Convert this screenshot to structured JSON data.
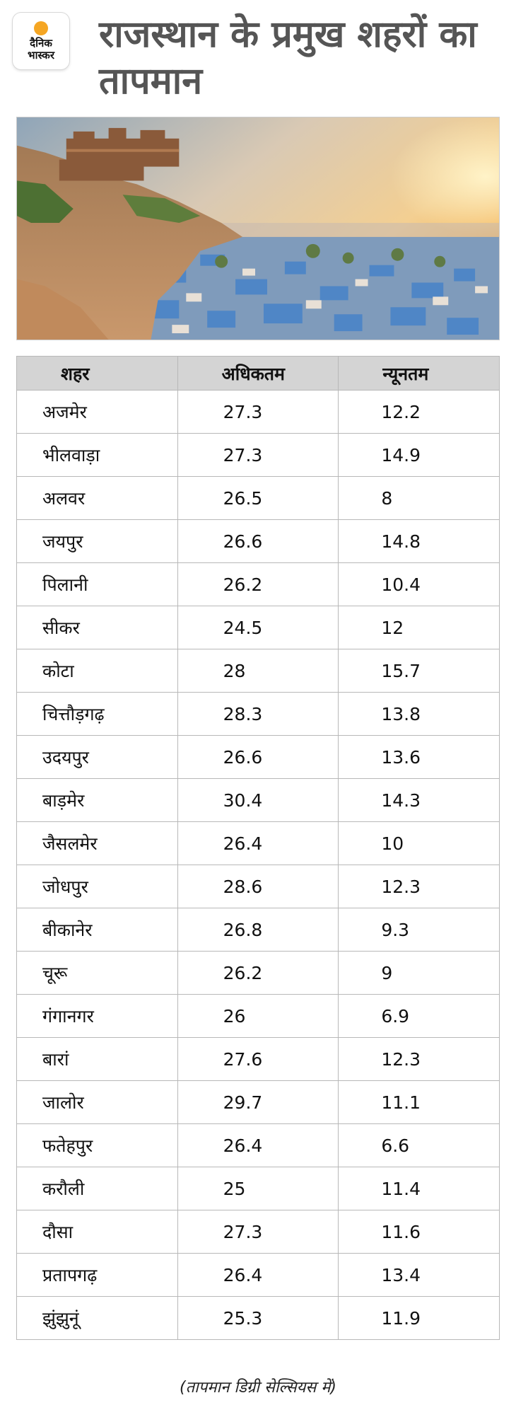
{
  "logo": {
    "line1": "दैनिक",
    "line2": "भास्कर",
    "accent": "#f5a623"
  },
  "headline": "राजस्थान के प्रमुख शहरों का तापमान",
  "table": {
    "headers": [
      "शहर",
      "अधिकतम",
      "न्यूनतम"
    ],
    "rows": [
      [
        "अजमेर",
        "27.3",
        "12.2"
      ],
      [
        "भीलवाड़ा",
        "27.3",
        "14.9"
      ],
      [
        "अलवर",
        "26.5",
        "8"
      ],
      [
        "जयपुर",
        "26.6",
        "14.8"
      ],
      [
        "पिलानी",
        "26.2",
        "10.4"
      ],
      [
        "सीकर",
        "24.5",
        "12"
      ],
      [
        "कोटा",
        "28",
        "15.7"
      ],
      [
        "चित्तौड़गढ़",
        "28.3",
        "13.8"
      ],
      [
        "उदयपुर",
        "26.6",
        "13.6"
      ],
      [
        "बाड़मेर",
        "30.4",
        "14.3"
      ],
      [
        "जैसलमेर",
        "26.4",
        "10"
      ],
      [
        "जोधपुर",
        "28.6",
        "12.3"
      ],
      [
        "बीकानेर",
        "26.8",
        "9.3"
      ],
      [
        "चूरू",
        "26.2",
        "9"
      ],
      [
        "गंगानगर",
        "26",
        "6.9"
      ],
      [
        "बारां",
        "27.6",
        "12.3"
      ],
      [
        "जालोर",
        "29.7",
        "11.1"
      ],
      [
        "फतेहपुर",
        "26.4",
        "6.6"
      ],
      [
        "करौली",
        "25",
        "11.4"
      ],
      [
        "दौसा",
        "27.3",
        "11.6"
      ],
      [
        "प्रतापगढ़",
        "26.4",
        "13.4"
      ],
      [
        "झुंझुनूं",
        "25.3",
        "11.9"
      ]
    ]
  },
  "footnote": "(तापमान डिग्री सेल्सियस में)",
  "colors": {
    "header_bg": "#d4d4d4",
    "border": "#b8b8b8",
    "headline": "#555555"
  }
}
